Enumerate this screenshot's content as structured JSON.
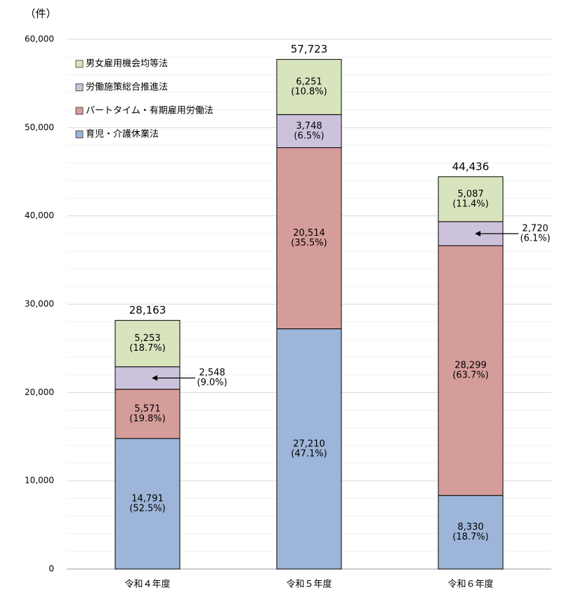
{
  "chart_data": {
    "type": "stacked_bar",
    "y_axis_label": "（件）",
    "categories": [
      "令和４年度",
      "令和５年度",
      "令和６年度"
    ],
    "series": [
      {
        "name": "育児・介護休業法",
        "color": "#9cb5d8",
        "values": [
          14791,
          27210,
          8330
        ],
        "value_labels": [
          "14,791",
          "27,210",
          "8,330"
        ],
        "share_labels": [
          "(52.5%)",
          "(47.1%)",
          "(18.7%)"
        ]
      },
      {
        "name": "パートタイム・有期雇用労働法",
        "color": "#d59d9a",
        "values": [
          5571,
          20514,
          28299
        ],
        "value_labels": [
          "5,571",
          "20,514",
          "28,299"
        ],
        "share_labels": [
          "(19.8%)",
          "(35.5%)",
          "(63.7%)"
        ]
      },
      {
        "name": "労働施策総合推進法",
        "color": "#cdc2dc",
        "values": [
          2548,
          3748,
          2720
        ],
        "value_labels": [
          "2,548",
          "3,748",
          "2,720"
        ],
        "share_labels": [
          "(9.0%)",
          "(6.5%)",
          "(6.1%)"
        ]
      },
      {
        "name": "男女雇用機会均等法",
        "color": "#d8e4be",
        "values": [
          5253,
          6251,
          5087
        ],
        "value_labels": [
          "5,253",
          "6,251",
          "5,087"
        ],
        "share_labels": [
          "(18.7%)",
          "(10.8%)",
          "(11.4%)"
        ]
      }
    ],
    "totals": [
      28163,
      57723,
      44436
    ],
    "total_labels": [
      "28,163",
      "57,723",
      "44,436"
    ],
    "ylim": [
      0,
      60000
    ],
    "yticks": [
      0,
      {
        "value": 10000,
        "label": "10,000"
      },
      {
        "value": 20000,
        "label": "20,000"
      },
      {
        "value": 30000,
        "label": "30,000"
      },
      {
        "value": 40000,
        "label": "40,000"
      },
      {
        "value": 50000,
        "label": "50,000"
      },
      {
        "value": 60000,
        "label": "60,000"
      }
    ],
    "grid": true,
    "legend": "upper-left"
  }
}
